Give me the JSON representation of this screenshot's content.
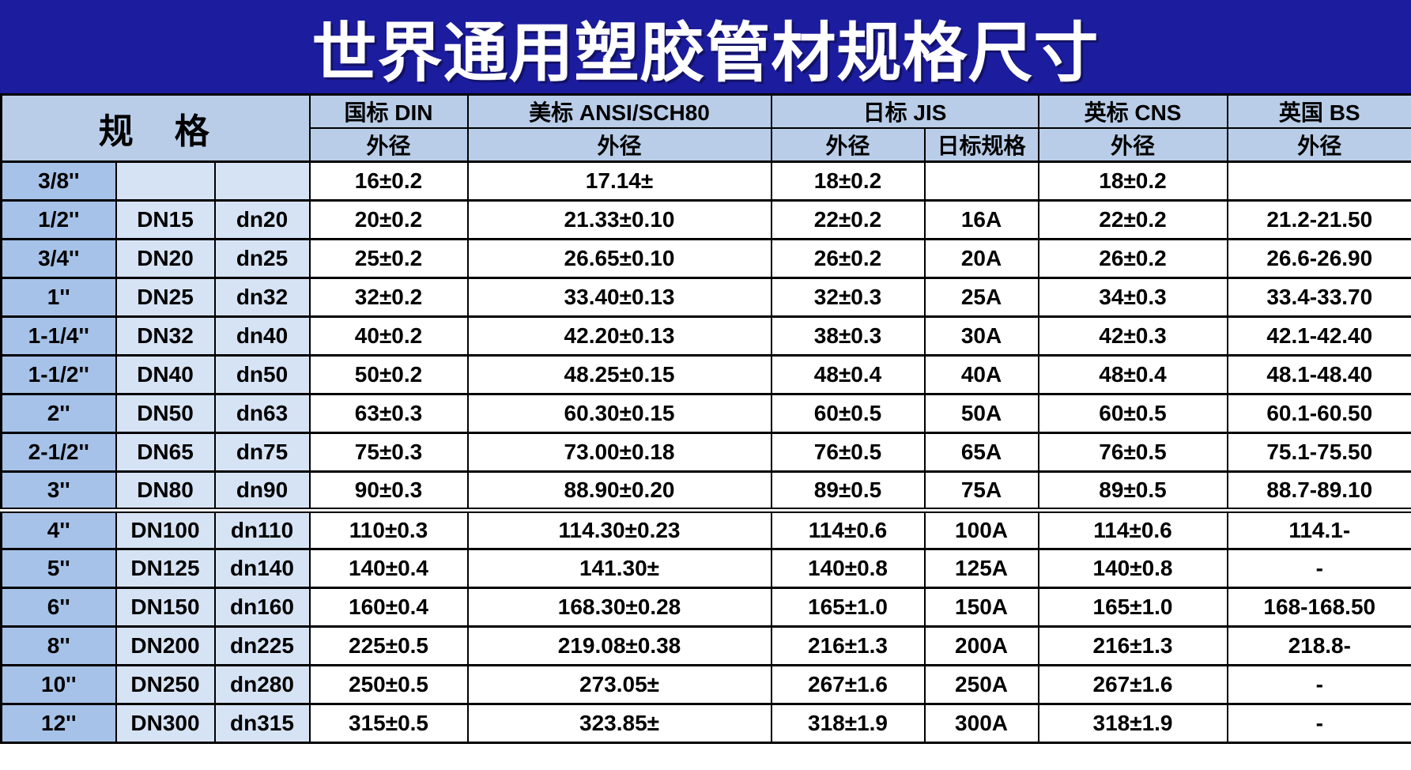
{
  "title": "世界通用塑胶管材规格尺寸",
  "colors": {
    "banner_bg": "#1c1c9e",
    "banner_text": "#ffffff",
    "header_cell_bg": "#b9cde8",
    "inch_column_bg": "#a6c2e8",
    "dn_column_bg": "#d6e3f4",
    "data_cell_bg": "#ffffff",
    "border": "#000000"
  },
  "table": {
    "spec_header": "规　格",
    "group_headers": [
      {
        "label": "国标 DIN"
      },
      {
        "label": "美标 ANSI/SCH80"
      },
      {
        "label": "日标 JIS"
      },
      {
        "label": "英标 CNS"
      },
      {
        "label": "英国 BS"
      }
    ],
    "sub_headers": [
      "外径",
      "外径",
      "外径",
      "日标规格",
      "外径",
      "外径"
    ],
    "column_keys": [
      "size-inch",
      "size-dn",
      "size-dn-metric",
      "din-od",
      "ansi-od",
      "jis-od",
      "jis-spec",
      "cns-od",
      "bs-od"
    ],
    "rows": [
      [
        "3/8''",
        "",
        "",
        "16±0.2",
        "17.14±",
        "18±0.2",
        "",
        "18±0.2",
        ""
      ],
      [
        "1/2''",
        "DN15",
        "dn20",
        "20±0.2",
        "21.33±0.10",
        "22±0.2",
        "16A",
        "22±0.2",
        "21.2-21.50"
      ],
      [
        "3/4''",
        "DN20",
        "dn25",
        "25±0.2",
        "26.65±0.10",
        "26±0.2",
        "20A",
        "26±0.2",
        "26.6-26.90"
      ],
      [
        "1''",
        "DN25",
        "dn32",
        "32±0.2",
        "33.40±0.13",
        "32±0.3",
        "25A",
        "34±0.3",
        "33.4-33.70"
      ],
      [
        "1-1/4''",
        "DN32",
        "dn40",
        "40±0.2",
        "42.20±0.13",
        "38±0.3",
        "30A",
        "42±0.3",
        "42.1-42.40"
      ],
      [
        "1-1/2''",
        "DN40",
        "dn50",
        "50±0.2",
        "48.25±0.15",
        "48±0.4",
        "40A",
        "48±0.4",
        "48.1-48.40"
      ],
      [
        "2''",
        "DN50",
        "dn63",
        "63±0.3",
        "60.30±0.15",
        "60±0.5",
        "50A",
        "60±0.5",
        "60.1-60.50"
      ],
      [
        "2-1/2''",
        "DN65",
        "dn75",
        "75±0.3",
        "73.00±0.18",
        "76±0.5",
        "65A",
        "76±0.5",
        "75.1-75.50"
      ],
      [
        "3''",
        "DN80",
        "dn90",
        "90±0.3",
        "88.90±0.20",
        "89±0.5",
        "75A",
        "89±0.5",
        "88.7-89.10"
      ],
      [
        "4''",
        "DN100",
        "dn110",
        "110±0.3",
        "114.30±0.23",
        "114±0.6",
        "100A",
        "114±0.6",
        "114.1-"
      ],
      [
        "5''",
        "DN125",
        "dn140",
        "140±0.4",
        "141.30±",
        "140±0.8",
        "125A",
        "140±0.8",
        "-"
      ],
      [
        "6''",
        "DN150",
        "dn160",
        "160±0.4",
        "168.30±0.28",
        "165±1.0",
        "150A",
        "165±1.0",
        "168-168.50"
      ],
      [
        "8''",
        "DN200",
        "dn225",
        "225±0.5",
        "219.08±0.38",
        "216±1.3",
        "200A",
        "216±1.3",
        "218.8-"
      ],
      [
        "10''",
        "DN250",
        "dn280",
        "250±0.5",
        "273.05±",
        "267±1.6",
        "250A",
        "267±1.6",
        "-"
      ],
      [
        "12''",
        "DN300",
        "dn315",
        "315±0.5",
        "323.85±",
        "318±1.9",
        "300A",
        "318±1.9",
        "-"
      ]
    ]
  }
}
